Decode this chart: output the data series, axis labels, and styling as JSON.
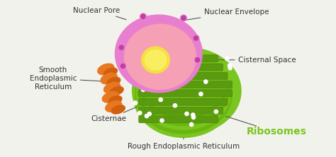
{
  "background_color": "#f5f5f0",
  "labels": {
    "nuclear_pore": "Nuclear Pore",
    "nuclear_envelope": "Nuclear Envelope",
    "smooth_er": "Smooth\nEndoplasmic\nReticulum",
    "cisternal_space": "Cisternal Space",
    "cisternae": "Cisternae",
    "rough_er": "Rough Endoplasmic Reticulum",
    "ribosomes": "Ribosomes"
  },
  "colors": {
    "nucleus_outer": "#e87ecf",
    "nucleus_inner": "#f5a0b5",
    "nucleolus": "#f5e040",
    "rough_er": "#7ac520",
    "rough_er_dark": "#5a9a10",
    "smooth_er": "#e87820",
    "background": "#f2f2ec",
    "label_text": "#333333",
    "ribosomes_text": "#7ac520",
    "line_color": "#555555"
  },
  "figsize": [
    4.74,
    2.22
  ],
  "dpi": 100
}
